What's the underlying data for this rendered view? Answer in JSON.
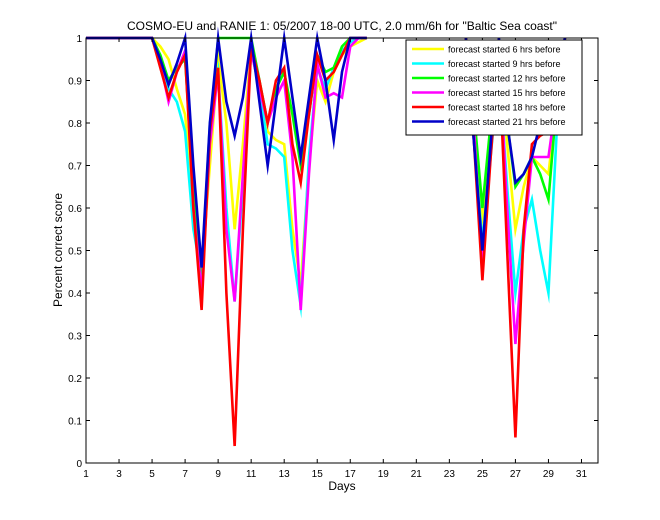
{
  "chart_data": {
    "type": "line",
    "title": "COSMO-EU and RANIE 1: 05/2007 18-00 UTC, 2.0 mm/6h for \"Baltic Sea coast\"",
    "xlabel": "Days",
    "ylabel": "Percent correct score",
    "xlim": [
      1,
      32
    ],
    "ylim": [
      0,
      1
    ],
    "xticks": [
      1,
      3,
      5,
      7,
      9,
      11,
      13,
      15,
      17,
      19,
      21,
      23,
      25,
      27,
      29,
      31
    ],
    "yticks": [
      0,
      0.1,
      0.2,
      0.3,
      0.4,
      0.5,
      0.6,
      0.7,
      0.8,
      0.9,
      1
    ],
    "ytick_labels": [
      "0",
      "0.1",
      "0.2",
      "0.3",
      "0.4",
      "0.5",
      "0.6",
      "0.7",
      "0.8",
      "0.9",
      "1"
    ],
    "legend_position": "top-right",
    "grid": false,
    "series": [
      {
        "name": "forecast started  6 hrs before",
        "color": "#ffff00",
        "x": [
          1,
          5,
          5.5,
          6,
          6.5,
          7,
          7.5,
          8,
          8.5,
          9,
          9.5,
          10,
          10.5,
          11,
          11.5,
          12,
          12.5,
          13,
          13.5,
          14,
          14.5,
          15,
          15.5,
          16,
          16.5,
          17,
          17.5,
          18,
          null,
          24,
          24.5,
          25,
          25.5,
          26,
          26.5,
          27,
          27.5,
          28,
          28.5,
          29,
          29.5,
          30
        ],
        "y": [
          1,
          1,
          0.98,
          0.95,
          0.88,
          0.82,
          0.6,
          0.45,
          0.7,
          0.95,
          0.8,
          0.55,
          0.75,
          0.98,
          0.9,
          0.78,
          0.76,
          0.75,
          0.55,
          0.42,
          0.7,
          0.9,
          0.85,
          0.92,
          0.96,
          0.98,
          0.99,
          1,
          null,
          1,
          0.8,
          0.58,
          0.75,
          0.95,
          0.75,
          0.55,
          0.65,
          0.72,
          0.7,
          0.68,
          0.85,
          1
        ]
      },
      {
        "name": "forecast started  9 hrs before",
        "color": "#00ffff",
        "x": [
          1,
          5,
          5.5,
          6,
          6.5,
          7,
          7.5,
          8,
          8.5,
          9,
          9.5,
          10,
          10.5,
          11,
          11.5,
          12,
          12.5,
          13,
          13.5,
          14,
          14.5,
          15,
          15.5,
          16,
          16.5,
          17,
          17.5,
          18,
          null,
          24,
          24.5,
          25,
          25.5,
          26,
          26.5,
          27,
          27.5,
          28,
          28.5,
          29,
          29.5,
          30
        ],
        "y": [
          1,
          1,
          0.95,
          0.88,
          0.85,
          0.78,
          0.55,
          0.44,
          0.8,
          0.92,
          0.6,
          0.38,
          0.65,
          0.97,
          0.88,
          0.75,
          0.74,
          0.72,
          0.5,
          0.37,
          0.72,
          0.93,
          0.88,
          0.93,
          0.97,
          0.99,
          1,
          1,
          null,
          1,
          0.75,
          0.52,
          0.72,
          0.93,
          0.65,
          0.4,
          0.55,
          0.62,
          0.5,
          0.4,
          0.78,
          1
        ]
      },
      {
        "name": "forecast started 12 hrs before",
        "color": "#00ff00",
        "x": [
          1,
          5,
          5.5,
          6,
          6.5,
          7,
          7.5,
          8,
          8.5,
          9,
          9.5,
          10,
          10.5,
          11,
          11.5,
          12,
          12.5,
          13,
          13.5,
          14,
          14.5,
          15,
          15.5,
          16,
          16.5,
          17,
          17.5,
          18,
          null,
          24,
          24.5,
          25,
          25.5,
          26,
          26.5,
          27,
          27.5,
          28,
          28.5,
          29,
          29.5,
          30
        ],
        "y": [
          1,
          1,
          0.96,
          0.9,
          0.93,
          0.95,
          0.65,
          0.44,
          0.78,
          1,
          1,
          1,
          1,
          1,
          0.9,
          0.8,
          0.88,
          0.92,
          0.82,
          0.7,
          0.82,
          0.96,
          0.92,
          0.93,
          0.98,
          1,
          1,
          1,
          null,
          1,
          0.82,
          0.6,
          0.8,
          0.97,
          0.8,
          0.65,
          0.68,
          0.72,
          0.68,
          0.62,
          0.85,
          1
        ]
      },
      {
        "name": "forecast started 15 hrs before",
        "color": "#ff00ff",
        "x": [
          1,
          5,
          5.5,
          6,
          6.5,
          7,
          7.5,
          8,
          8.5,
          9,
          9.5,
          10,
          10.5,
          11,
          11.5,
          12,
          12.5,
          13,
          13.5,
          14,
          14.5,
          15,
          15.5,
          16,
          16.5,
          17,
          17.5,
          18,
          null,
          24,
          24.5,
          25,
          25.5,
          26,
          26.5,
          27,
          27.5,
          28,
          28.5,
          29,
          29.5,
          30
        ],
        "y": [
          1,
          1,
          0.94,
          0.85,
          0.92,
          0.97,
          0.6,
          0.4,
          0.75,
          0.92,
          0.55,
          0.38,
          0.68,
          0.97,
          0.88,
          0.8,
          0.86,
          0.9,
          0.72,
          0.36,
          0.68,
          0.94,
          0.86,
          0.87,
          0.86,
          0.98,
          1,
          1,
          null,
          1,
          0.78,
          0.45,
          0.73,
          0.97,
          0.6,
          0.28,
          0.52,
          0.72,
          0.72,
          0.72,
          0.86,
          1
        ]
      },
      {
        "name": "forecast started 18 hrs before",
        "color": "#ff0000",
        "x": [
          1,
          5,
          5.5,
          6,
          6.5,
          7,
          7.5,
          8,
          8.5,
          9,
          9.5,
          10,
          10.5,
          11,
          11.5,
          12,
          12.5,
          13,
          13.5,
          14,
          14.5,
          15,
          15.5,
          16,
          16.5,
          17,
          17.5,
          18,
          null,
          24,
          24.5,
          25,
          25.5,
          26,
          26.5,
          27,
          27.5,
          28,
          28.5,
          29,
          29.5,
          30
        ],
        "y": [
          1,
          1,
          0.93,
          0.86,
          0.92,
          0.96,
          0.6,
          0.36,
          0.78,
          0.93,
          0.4,
          0.04,
          0.55,
          0.98,
          0.9,
          0.8,
          0.9,
          0.93,
          0.75,
          0.66,
          0.82,
          0.96,
          0.9,
          0.92,
          0.96,
          1,
          1,
          1,
          null,
          1,
          0.75,
          0.43,
          0.72,
          0.96,
          0.5,
          0.06,
          0.55,
          0.75,
          0.77,
          0.78,
          0.88,
          1
        ]
      },
      {
        "name": "forecast started 21 hrs before",
        "color": "#0000c8",
        "x": [
          1,
          5,
          5.5,
          6,
          6.5,
          7,
          7.5,
          8,
          8.5,
          9,
          9.5,
          10,
          10.5,
          11,
          11.5,
          12,
          12.5,
          13,
          13.5,
          14,
          14.5,
          15,
          15.5,
          16,
          16.5,
          17,
          17.5,
          18,
          null,
          24,
          24.5,
          25,
          25.5,
          26,
          26.5,
          27,
          27.5,
          28,
          28.5,
          29,
          29.5,
          30
        ],
        "y": [
          1,
          1,
          0.95,
          0.89,
          0.94,
          1,
          0.7,
          0.46,
          0.8,
          1,
          0.85,
          0.77,
          0.86,
          1,
          0.85,
          0.7,
          0.85,
          1,
          0.86,
          0.72,
          0.86,
          1,
          0.9,
          0.76,
          0.92,
          1,
          1,
          1,
          null,
          1,
          0.75,
          0.5,
          0.75,
          1,
          0.8,
          0.66,
          0.68,
          0.72,
          0.8,
          0.88,
          0.93,
          1
        ]
      }
    ]
  }
}
